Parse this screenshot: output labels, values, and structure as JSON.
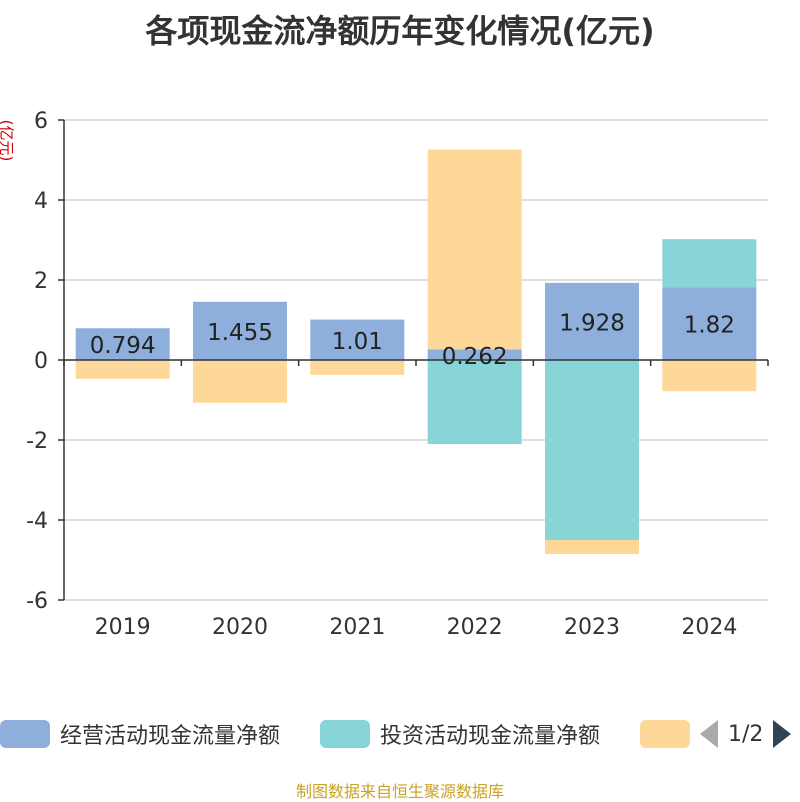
{
  "chart_data": {
    "type": "bar",
    "stacked": true,
    "title": "各项现金流净额历年变化情况(亿元)",
    "ylabel": "(亿元)",
    "ylim": [
      -6,
      6
    ],
    "yticks": [
      6,
      4,
      2,
      0,
      -2,
      -4,
      -6
    ],
    "categories": [
      "2019",
      "2020",
      "2021",
      "2022",
      "2023",
      "2024"
    ],
    "series": [
      {
        "name": "经营活动现金流量净额",
        "color": "#8eaedb",
        "values": [
          0.794,
          1.455,
          1.01,
          0.262,
          1.928,
          1.82
        ],
        "labels": [
          "0.794",
          "1.455",
          "1.01",
          "0.262",
          "1.928",
          "1.82"
        ]
      },
      {
        "name": "投资活动现金流量净额",
        "color": "#88d5d7",
        "values": [
          -0.02,
          -0.02,
          -0.02,
          -2.1,
          -4.5,
          1.2
        ]
      },
      {
        "name": "",
        "color": "#fdd898",
        "values": [
          -0.45,
          -1.05,
          -0.35,
          5.0,
          -0.35,
          -0.78
        ]
      }
    ],
    "legend_position": "bottom",
    "grid": true
  },
  "legend": {
    "page_indicator": "1/2"
  },
  "source": "制图数据来自恒生聚源数据库"
}
